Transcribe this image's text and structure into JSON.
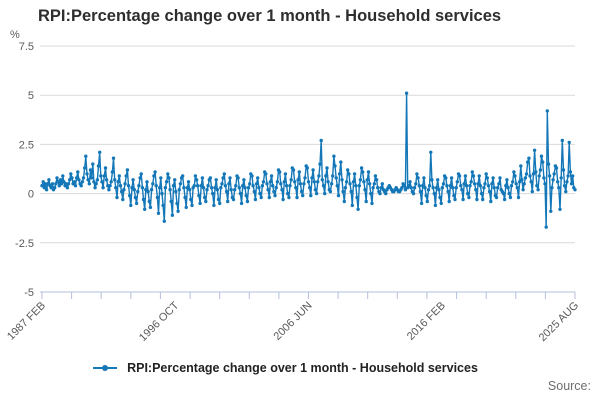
{
  "title": "RPI:Percentage change over 1 month - Household services",
  "source_label": "Source:",
  "legend": {
    "label": "RPI:Percentage change over 1 month - Household services",
    "marker": "line-dot-icon"
  },
  "y_axis": {
    "unit": "%",
    "max": 7.5,
    "min": -5,
    "ticks": [
      "7.5",
      "5",
      "2.5",
      "0",
      "-2.5",
      "-5"
    ]
  },
  "x_axis": {
    "labels": [
      "1987 FEB",
      "1996 OCT",
      "2006 JUN",
      "2016 FEB",
      "2025 AUG"
    ],
    "minor_tick_count": 19
  },
  "colors": {
    "series": "#1477b8",
    "grid": "#d9d9d9",
    "axis": "#b3c1d8",
    "title_text": "#2e2e2e",
    "muted_text": "#595959",
    "source_text": "#6e6e6e",
    "legend_text": "#222222"
  },
  "chart_data": {
    "type": "line",
    "title": "RPI:Percentage change over 1 month - Household services",
    "xlabel": "",
    "ylabel": "%",
    "ylim": [
      -5,
      7.5
    ],
    "x_start": "1987 FEB",
    "x_end": "2025 AUG",
    "frequency": "monthly",
    "grid": "horizontal",
    "legend_position": "bottom",
    "x_tick_labels": [
      "1987 FEB",
      "1996 OCT",
      "2006 JUN",
      "2016 FEB",
      "2025 AUG"
    ],
    "series": [
      {
        "name": "RPI:Percentage change over 1 month - Household services",
        "marker": "circle",
        "years": [
          {
            "year": 1987,
            "start_month": 2,
            "values": [
              0.4,
              0.6,
              0.3,
              0.5,
              0.2,
              0.5,
              0.7,
              0.4,
              0.3,
              0.5,
              0.2
            ]
          },
          {
            "year": 1988,
            "values": [
              0.3,
              0.5,
              0.8,
              0.6,
              0.4,
              0.7,
              0.5,
              0.9,
              0.6,
              0.4,
              0.5,
              0.3
            ]
          },
          {
            "year": 1989,
            "values": [
              0.5,
              0.7,
              1.0,
              0.8,
              0.5,
              0.6,
              0.4,
              0.8,
              1.1,
              0.7,
              0.5,
              0.4
            ]
          },
          {
            "year": 1990,
            "values": [
              0.6,
              0.8,
              1.3,
              1.9,
              1.0,
              0.7,
              0.5,
              1.2,
              0.8,
              1.5,
              0.6,
              0.3
            ]
          },
          {
            "year": 1991,
            "values": [
              0.5,
              0.7,
              1.4,
              2.1,
              0.9,
              0.6,
              0.3,
              0.9,
              1.3,
              0.7,
              0.4,
              0.2
            ]
          },
          {
            "year": 1992,
            "values": [
              0.4,
              0.6,
              1.1,
              1.8,
              0.7,
              0.3,
              -0.2,
              0.6,
              0.9,
              0.4,
              0.1,
              -0.3
            ]
          },
          {
            "year": 1993,
            "values": [
              0.2,
              0.5,
              0.9,
              1.2,
              0.4,
              -0.1,
              -0.6,
              0.3,
              0.7,
              0.2,
              -0.2,
              -0.5
            ]
          },
          {
            "year": 1994,
            "values": [
              0.1,
              0.4,
              0.8,
              1.0,
              0.3,
              -0.3,
              -0.8,
              0.2,
              0.6,
              0.1,
              -0.4,
              -0.7
            ]
          },
          {
            "year": 1995,
            "values": [
              0.2,
              0.5,
              0.9,
              1.1,
              0.4,
              -0.2,
              -1.0,
              0.3,
              0.8,
              0.0,
              -0.6,
              -1.4
            ]
          },
          {
            "year": 1996,
            "values": [
              0.3,
              0.6,
              1.0,
              0.8,
              0.2,
              -0.4,
              -1.1,
              0.4,
              0.7,
              0.1,
              -0.5,
              -0.9
            ]
          },
          {
            "year": 1997,
            "values": [
              0.2,
              0.5,
              0.8,
              0.9,
              0.3,
              -0.2,
              -0.7,
              0.3,
              0.6,
              0.2,
              -0.3,
              -0.6
            ]
          },
          {
            "year": 1998,
            "values": [
              0.3,
              0.4,
              0.9,
              0.7,
              0.4,
              -0.1,
              -0.5,
              0.4,
              0.8,
              0.3,
              -0.2,
              -0.4
            ]
          },
          {
            "year": 1999,
            "values": [
              0.2,
              0.4,
              0.7,
              0.8,
              0.3,
              0.0,
              -0.6,
              0.3,
              0.7,
              0.2,
              -0.3,
              -0.5
            ]
          },
          {
            "year": 2000,
            "values": [
              0.3,
              0.5,
              0.8,
              1.0,
              0.4,
              0.1,
              -0.4,
              0.5,
              0.8,
              0.2,
              -0.2,
              -0.3
            ]
          },
          {
            "year": 2001,
            "values": [
              0.2,
              0.4,
              0.9,
              0.8,
              0.3,
              0.0,
              -0.5,
              0.4,
              0.7,
              0.3,
              -0.1,
              -0.4
            ]
          },
          {
            "year": 2002,
            "values": [
              0.3,
              0.5,
              1.0,
              0.9,
              0.4,
              0.1,
              -0.3,
              0.5,
              0.8,
              0.3,
              0.0,
              -0.2
            ]
          },
          {
            "year": 2003,
            "values": [
              0.4,
              0.6,
              1.1,
              1.0,
              0.5,
              0.2,
              -0.2,
              0.6,
              0.9,
              0.4,
              0.1,
              -0.1
            ]
          },
          {
            "year": 2004,
            "values": [
              0.3,
              0.6,
              1.2,
              1.1,
              0.5,
              0.2,
              -0.3,
              0.6,
              1.0,
              0.4,
              0.0,
              -0.2
            ]
          },
          {
            "year": 2005,
            "values": [
              0.4,
              0.7,
              1.3,
              1.2,
              0.6,
              0.3,
              -0.2,
              0.7,
              1.1,
              0.5,
              0.1,
              -0.1
            ]
          },
          {
            "year": 2006,
            "values": [
              0.5,
              0.8,
              1.4,
              1.3,
              0.6,
              0.3,
              -0.1,
              0.8,
              1.2,
              0.6,
              0.2,
              0.0
            ]
          },
          {
            "year": 2007,
            "values": [
              0.6,
              0.9,
              1.5,
              2.7,
              0.7,
              0.4,
              0.0,
              0.9,
              1.3,
              0.6,
              0.2,
              0.1
            ]
          },
          {
            "year": 2008,
            "values": [
              0.5,
              0.9,
              1.9,
              1.4,
              0.8,
              0.4,
              -0.1,
              1.0,
              1.6,
              0.7,
              0.1,
              -0.4
            ]
          },
          {
            "year": 2009,
            "values": [
              0.3,
              0.6,
              1.2,
              1.0,
              0.5,
              0.1,
              -0.6,
              0.6,
              1.0,
              0.4,
              -0.2,
              -0.8
            ]
          },
          {
            "year": 2010,
            "values": [
              0.4,
              0.7,
              1.3,
              1.1,
              0.6,
              0.2,
              -0.4,
              0.7,
              1.1,
              0.5,
              0.0,
              -0.5
            ]
          },
          {
            "year": 2011,
            "values": [
              0.3,
              0.5,
              0.9,
              0.7,
              0.3,
              0.1,
              0.0,
              0.3,
              0.5,
              0.2,
              0.1,
              0.0
            ]
          },
          {
            "year": 2012,
            "values": [
              0.2,
              0.3,
              0.4,
              0.3,
              0.2,
              0.1,
              0.1,
              0.2,
              0.3,
              0.2,
              0.1,
              0.1
            ]
          },
          {
            "year": 2013,
            "values": [
              0.2,
              0.3,
              0.5,
              0.4,
              0.2,
              5.1,
              0.3,
              0.4,
              0.6,
              0.3,
              0.1,
              0.0
            ]
          },
          {
            "year": 2014,
            "values": [
              0.3,
              0.5,
              1.0,
              0.8,
              0.4,
              0.1,
              -0.5,
              0.4,
              0.8,
              0.3,
              -0.1,
              -0.4
            ]
          },
          {
            "year": 2015,
            "values": [
              0.2,
              0.4,
              2.1,
              0.7,
              0.3,
              0.0,
              -0.6,
              0.3,
              0.7,
              0.2,
              -0.2,
              -0.5
            ]
          },
          {
            "year": 2016,
            "values": [
              0.3,
              0.5,
              0.9,
              0.8,
              0.4,
              0.1,
              -0.4,
              0.4,
              0.8,
              0.3,
              -0.1,
              -0.3
            ]
          },
          {
            "year": 2017,
            "values": [
              0.3,
              0.6,
              1.0,
              0.9,
              0.4,
              0.2,
              -0.3,
              0.5,
              0.9,
              0.4,
              0.0,
              -0.2
            ]
          },
          {
            "year": 2018,
            "values": [
              0.4,
              0.6,
              1.1,
              0.9,
              0.5,
              0.2,
              -0.3,
              0.5,
              0.9,
              0.4,
              0.0,
              -0.3
            ]
          },
          {
            "year": 2019,
            "values": [
              0.3,
              0.5,
              1.0,
              0.8,
              0.4,
              0.1,
              -0.4,
              0.5,
              0.8,
              0.3,
              -0.1,
              -0.2
            ]
          },
          {
            "year": 2020,
            "values": [
              0.3,
              0.5,
              0.8,
              0.2,
              0.1,
              0.0,
              -0.3,
              0.4,
              0.7,
              0.3,
              0.0,
              -0.2
            ]
          },
          {
            "year": 2021,
            "values": [
              0.4,
              0.6,
              1.1,
              0.9,
              0.5,
              0.3,
              -0.2,
              0.6,
              1.4,
              0.7,
              0.2,
              0.5
            ]
          },
          {
            "year": 2022,
            "values": [
              0.8,
              1.0,
              1.6,
              1.8,
              0.9,
              0.6,
              0.1,
              1.0,
              2.2,
              1.1,
              0.4,
              0.2
            ]
          },
          {
            "year": 2023,
            "values": [
              0.9,
              1.2,
              1.9,
              1.6,
              0.8,
              0.5,
              -1.7,
              4.2,
              1.5,
              0.9,
              -0.9,
              0.3
            ]
          },
          {
            "year": 2024,
            "values": [
              0.7,
              1.0,
              1.4,
              1.3,
              0.6,
              0.3,
              -0.8,
              0.8,
              2.7,
              1.2,
              0.4,
              0.1
            ]
          },
          {
            "year": 2025,
            "end_month": 8,
            "values": [
              0.6,
              0.9,
              2.6,
              1.1,
              0.5,
              0.9,
              0.3,
              0.2
            ]
          }
        ]
      }
    ]
  }
}
